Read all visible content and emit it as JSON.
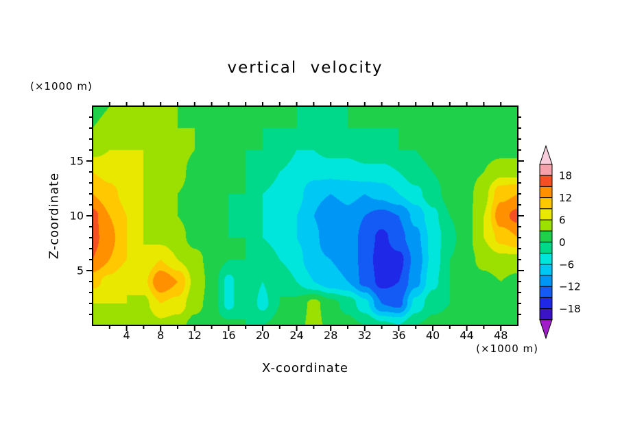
{
  "figure": {
    "title": "vertical velocity",
    "x_axis": {
      "label": "X-coordinate",
      "unit": "(×1000 m)",
      "ticks": [
        4,
        8,
        12,
        16,
        20,
        24,
        28,
        32,
        36,
        40,
        44,
        48
      ],
      "range": [
        0,
        50
      ]
    },
    "y_axis": {
      "label": "Z-coordinate",
      "unit": "(×1000 m)",
      "ticks": [
        5,
        10,
        15
      ],
      "range": [
        0,
        20
      ]
    },
    "colorbar": {
      "labels": [
        18,
        12,
        6,
        0,
        -6,
        -12,
        -18
      ]
    }
  },
  "chart_data": {
    "type": "heatmap",
    "title": "vertical velocity",
    "xlabel": "X-coordinate (×1000 m)",
    "ylabel": "Z-coordinate (×1000 m)",
    "x_range": [
      0,
      50
    ],
    "z_range": [
      0,
      20
    ],
    "contour_interval": 3,
    "levels": [
      -21,
      -18,
      -15,
      -12,
      -9,
      -6,
      -3,
      0,
      3,
      6,
      9,
      12,
      15,
      18,
      21
    ],
    "palette": [
      "#A01EC8",
      "#3C14C8",
      "#1E28E6",
      "#145AF5",
      "#0096F5",
      "#00C8F5",
      "#00E6DC",
      "#00D88A",
      "#1ED04A",
      "#9BE000",
      "#E8E800",
      "#FFC800",
      "#FF9000",
      "#F55023",
      "#F5A0AA",
      "#F8CEDC"
    ],
    "x": [
      0,
      2,
      4,
      6,
      8,
      10,
      12,
      14,
      16,
      18,
      20,
      22,
      24,
      26,
      28,
      30,
      32,
      34,
      36,
      38,
      40,
      42,
      44,
      46,
      48,
      50
    ],
    "z": [
      0,
      2,
      4,
      6,
      8,
      10,
      12,
      14,
      16,
      18,
      20
    ],
    "values": [
      [
        5,
        5,
        4,
        3,
        5,
        4,
        2,
        1,
        1,
        0,
        0,
        1,
        2,
        4,
        2,
        1,
        0,
        -2,
        -3,
        0,
        1,
        1,
        1,
        2,
        2,
        2
      ],
      [
        6,
        6,
        6,
        5,
        9,
        8,
        4,
        2,
        -4,
        0,
        -4,
        0,
        1,
        4,
        1,
        -1,
        -5,
        -12,
        -13,
        -5,
        -1,
        0,
        1,
        2,
        2,
        2
      ],
      [
        10,
        8,
        6,
        8,
        15,
        12,
        5,
        2,
        -4,
        0,
        -3,
        0,
        -3,
        -6,
        -8,
        -9,
        -13,
        -16,
        -15,
        -10,
        -4,
        0,
        1,
        2,
        3,
        2
      ],
      [
        15,
        12,
        9,
        6,
        9,
        6,
        4,
        2,
        0,
        0,
        -1,
        -3,
        -5,
        -8,
        -9,
        -10,
        -13,
        -17,
        -16,
        -11,
        -5,
        0,
        2,
        4,
        5,
        5
      ],
      [
        16,
        13,
        9,
        6,
        5,
        4,
        2,
        1,
        0,
        0,
        -3,
        -4,
        -6,
        -8,
        -12,
        -10,
        -13,
        -16,
        -13,
        -10,
        -5,
        -1,
        2,
        6,
        10,
        12
      ],
      [
        16,
        12,
        9,
        6,
        5,
        3,
        2,
        1,
        0,
        -1,
        -3,
        -4,
        -6,
        -9,
        -12,
        -10,
        -12,
        -13,
        -12,
        -8,
        -4,
        0,
        2,
        6,
        14,
        16
      ],
      [
        12,
        10,
        8,
        6,
        5,
        3,
        2,
        1,
        0,
        0,
        -3,
        -4,
        -5,
        -8,
        -9,
        -8,
        -9,
        -8,
        -6,
        -4,
        -1,
        1,
        2,
        5,
        11,
        12
      ],
      [
        9,
        8,
        6,
        6,
        5,
        4,
        2,
        1,
        0,
        0,
        -1,
        -3,
        -4,
        -5,
        -5,
        -5,
        -4,
        -4,
        -3,
        -1,
        0,
        1,
        2,
        3,
        5,
        5
      ],
      [
        5,
        6,
        6,
        6,
        5,
        4,
        3,
        2,
        1,
        0,
        0,
        -1,
        -3,
        -3,
        -2,
        -2,
        -1,
        -1,
        0,
        0,
        1,
        1,
        1,
        2,
        2,
        2
      ],
      [
        3,
        4,
        5,
        5,
        4,
        3,
        3,
        2,
        1,
        1,
        0,
        0,
        0,
        -1,
        -1,
        0,
        0,
        0,
        0,
        1,
        1,
        1,
        1,
        1,
        2,
        2
      ],
      [
        2,
        3,
        4,
        4,
        3,
        3,
        2,
        2,
        1,
        1,
        1,
        0,
        0,
        0,
        0,
        0,
        0,
        0,
        1,
        1,
        1,
        1,
        1,
        1,
        1,
        1
      ]
    ]
  }
}
